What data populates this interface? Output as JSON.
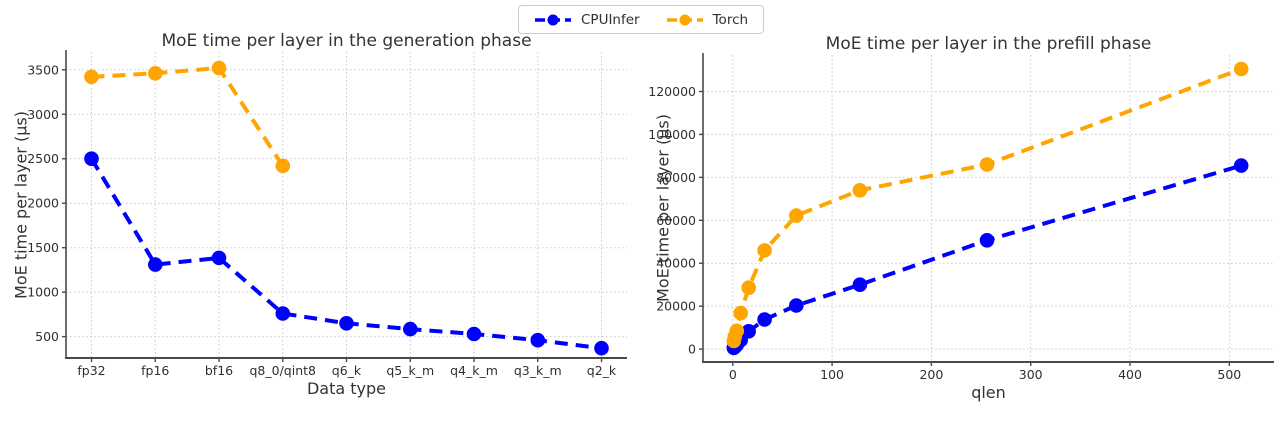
{
  "figure": {
    "legend": {
      "entries": [
        {
          "label": "CPUInfer",
          "color": "#0000ff"
        },
        {
          "label": "Torch",
          "color": "#ffa500"
        }
      ]
    },
    "colors": {
      "grid": "#c9c9c9",
      "spine": "#4a4a4a",
      "text": "#303030"
    }
  },
  "chart_data": [
    {
      "id": "generation",
      "type": "line",
      "title": "MoE time per layer in the generation phase",
      "xlabel": "Data type",
      "ylabel": "MoE time per layer (μs)",
      "grid": true,
      "legend_position": "figure-top-center",
      "categories": [
        "fp32",
        "fp16",
        "bf16",
        "q8_0/qint8",
        "q6_k",
        "q5_k_m",
        "q4_k_m",
        "q3_k_m",
        "q2_k"
      ],
      "series": [
        {
          "name": "CPUInfer",
          "color": "#0000ff",
          "values": [
            2500,
            1310,
            1385,
            760,
            650,
            585,
            530,
            460,
            370
          ]
        },
        {
          "name": "Torch",
          "color": "#ffa500",
          "values": [
            3420,
            3460,
            3520,
            2420,
            null,
            null,
            null,
            null,
            null
          ]
        }
      ],
      "yticks": [
        500,
        1000,
        1500,
        2000,
        2500,
        3000,
        3500
      ],
      "ylim": [
        260,
        3700
      ]
    },
    {
      "id": "prefill",
      "type": "line",
      "title": "MoE time per layer in the prefill phase",
      "xlabel": "qlen",
      "ylabel": "MoE time per layer (μs)",
      "grid": true,
      "x": [
        1,
        2,
        4,
        8,
        16,
        32,
        64,
        128,
        256,
        512
      ],
      "series": [
        {
          "name": "CPUInfer",
          "color": "#0000ff",
          "values": [
            600,
            1000,
            2000,
            4200,
            8300,
            13800,
            20300,
            30000,
            50700,
            85500
          ]
        },
        {
          "name": "Torch",
          "color": "#ffa500",
          "values": [
            3800,
            5800,
            8500,
            16800,
            28600,
            46000,
            62200,
            74000,
            86000,
            130500
          ]
        }
      ],
      "xticks": [
        0,
        100,
        200,
        300,
        400,
        500
      ],
      "yticks": [
        0,
        20000,
        40000,
        60000,
        80000,
        100000,
        120000
      ],
      "xlim": [
        -30,
        545
      ],
      "ylim": [
        -6000,
        137000
      ]
    }
  ]
}
